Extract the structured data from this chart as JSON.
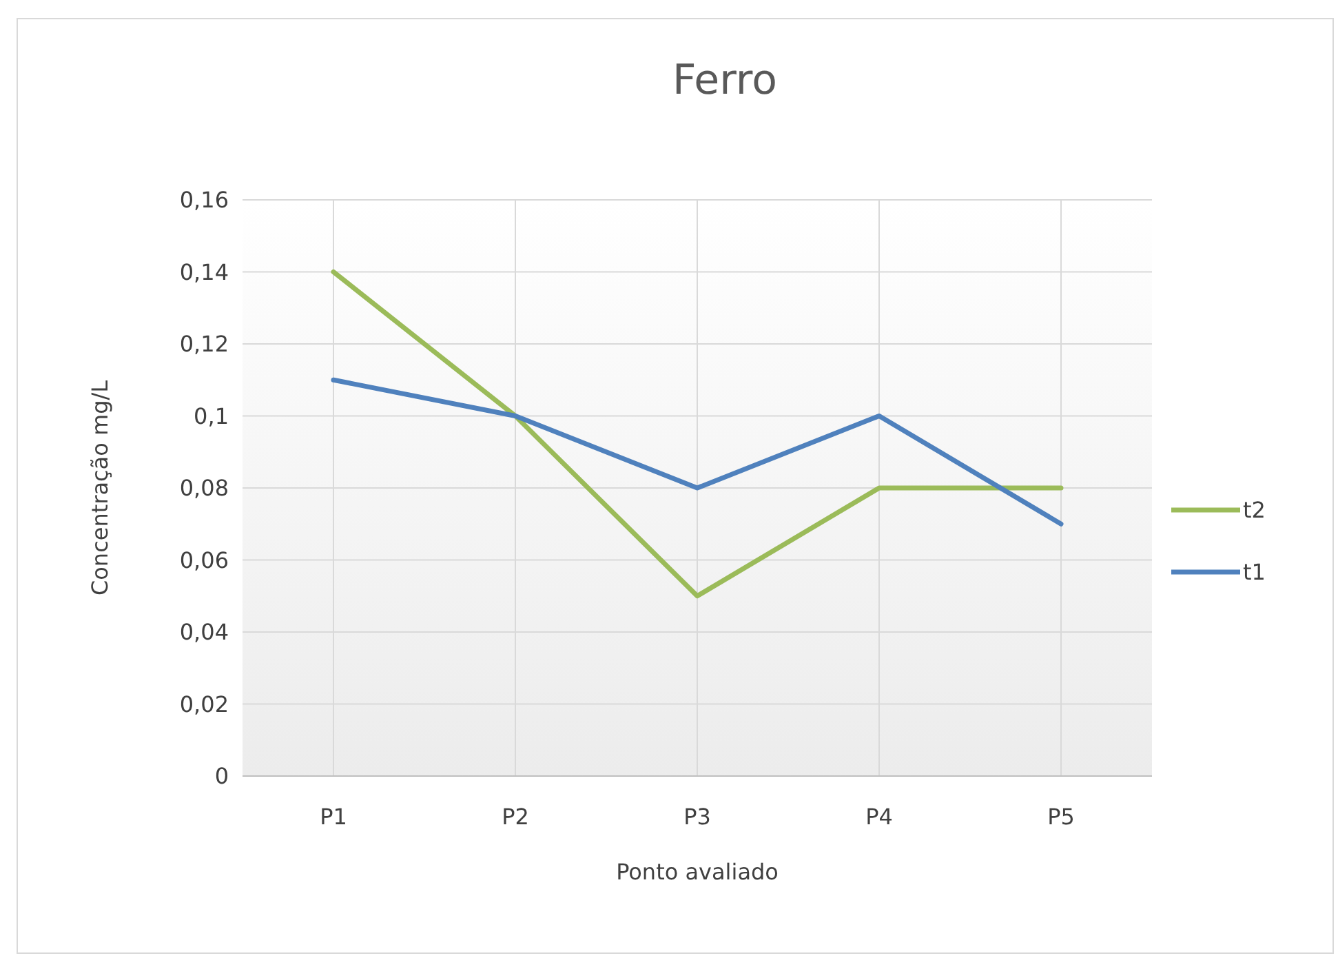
{
  "chart_data": {
    "type": "line",
    "title": "Ferro",
    "xlabel": "Ponto avaliado",
    "ylabel": "Concentração mg/L",
    "categories": [
      "P1",
      "P2",
      "P3",
      "P4",
      "P5"
    ],
    "series": [
      {
        "name": "t2",
        "color": "#9bbb59",
        "values": [
          0.14,
          0.1,
          0.05,
          0.08,
          0.08
        ]
      },
      {
        "name": "t1",
        "color": "#4f81bd",
        "values": [
          0.11,
          0.1,
          0.08,
          0.1,
          0.07
        ]
      }
    ],
    "ylim": [
      0,
      0.16
    ],
    "yticks": [
      0,
      {
        "value": 0.02,
        "label": "0,02"
      },
      {
        "value": 0.04,
        "label": "0,04"
      },
      {
        "value": 0.06,
        "label": "0,06"
      },
      {
        "value": 0.08,
        "label": "0,08"
      },
      {
        "value": 0.1,
        "label": "0,1"
      },
      {
        "value": 0.12,
        "label": "0,12"
      },
      {
        "value": 0.14,
        "label": "0,14"
      },
      {
        "value": 0.16,
        "label": "0,16"
      }
    ],
    "grid": true,
    "legend": "right",
    "marker": "none",
    "line_style": "solid"
  }
}
